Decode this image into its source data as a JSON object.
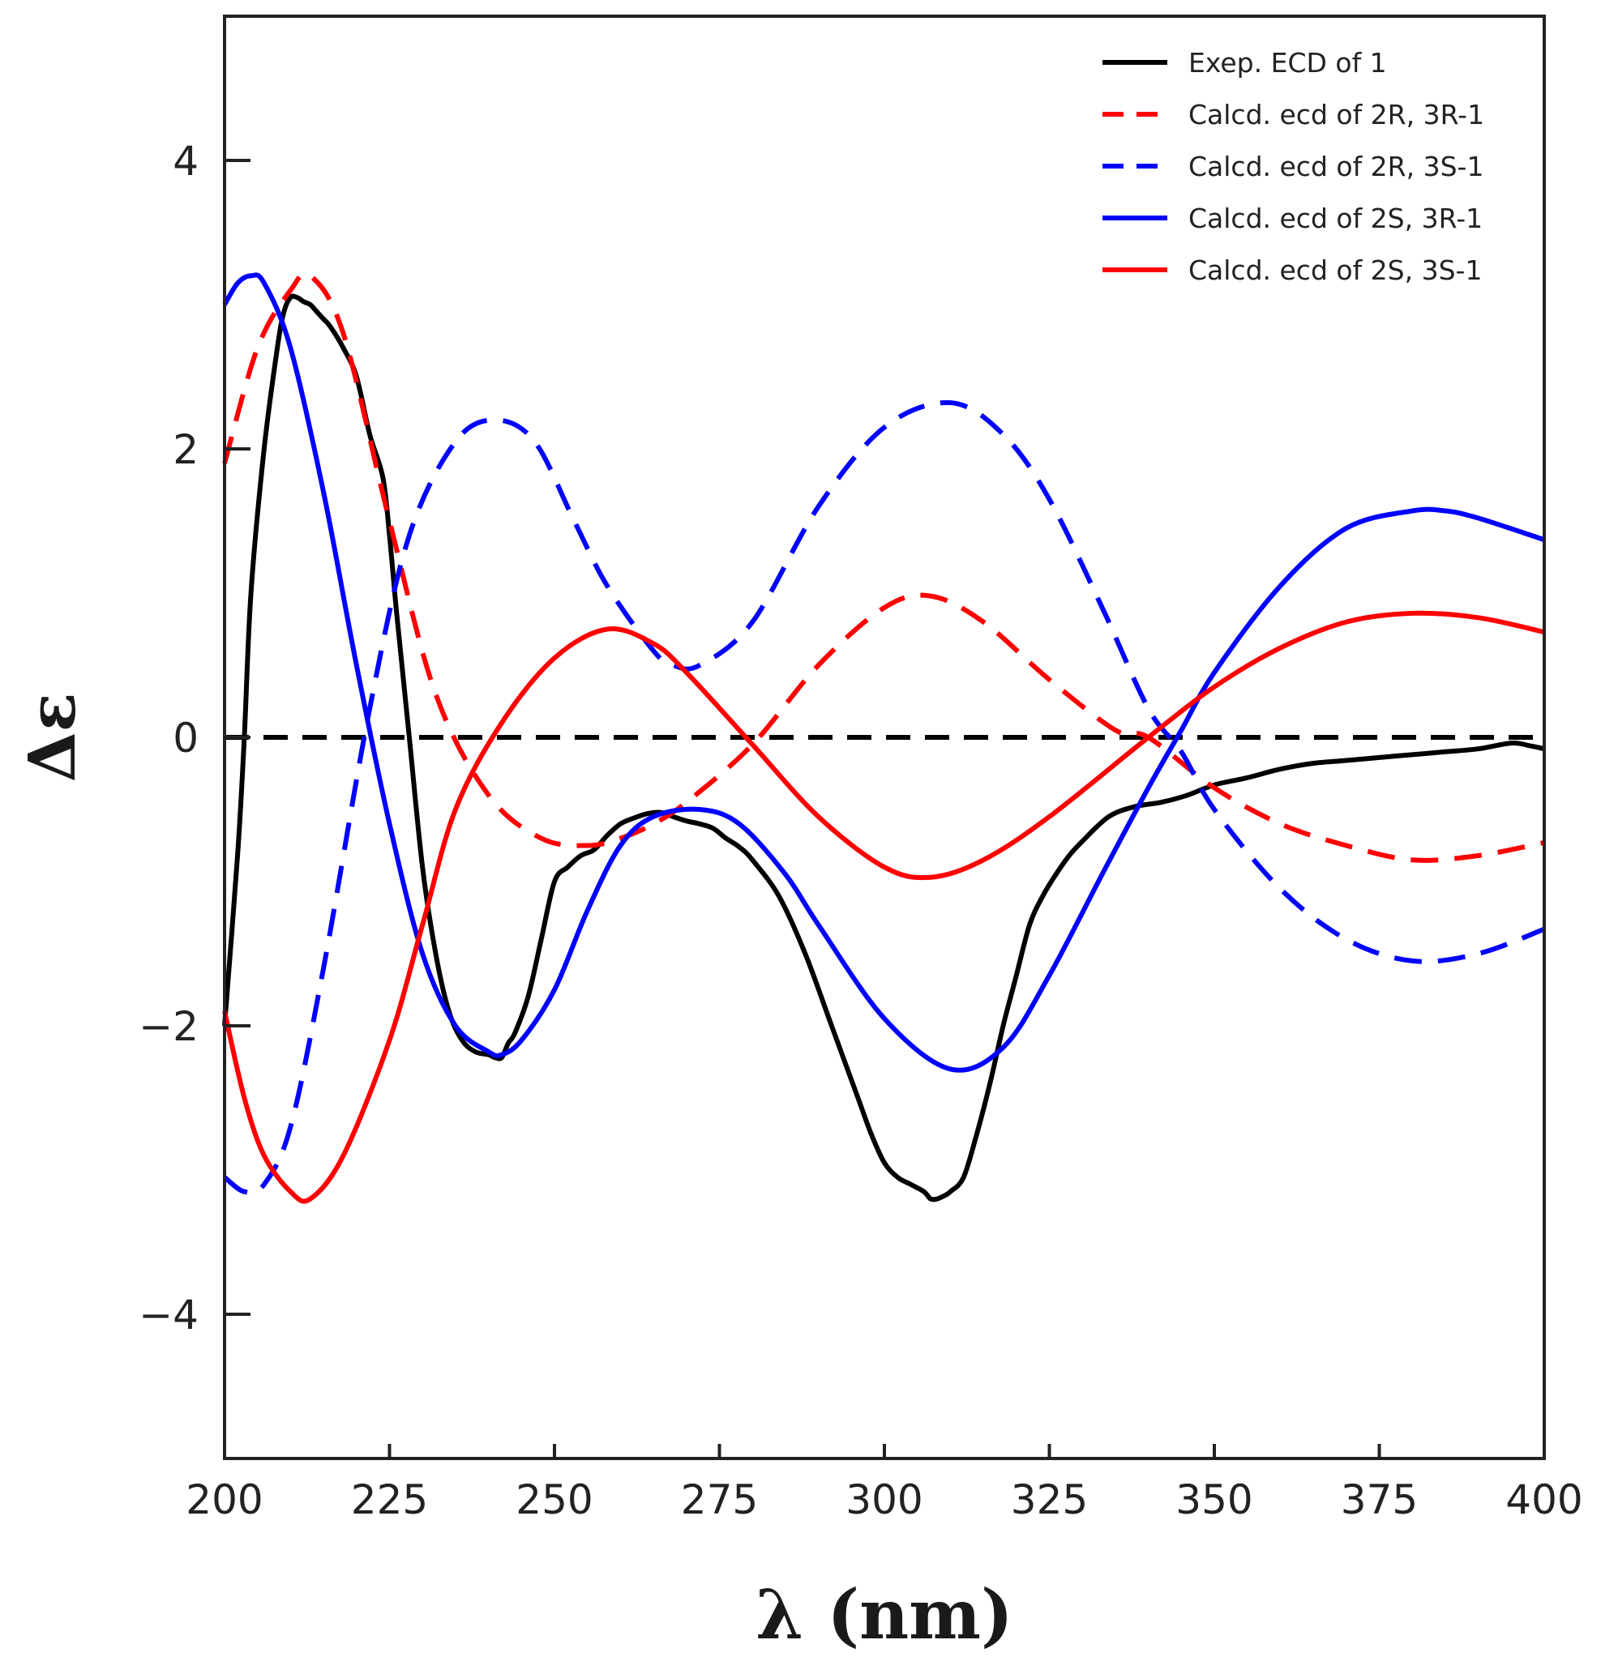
{
  "chart_data": {
    "type": "line",
    "title": "",
    "xlabel": "λ (nm)",
    "ylabel": "Δε",
    "xlim": [
      200,
      400
    ],
    "ylim": [
      -5,
      5
    ],
    "x_ticks": [
      200,
      225,
      250,
      275,
      300,
      325,
      350,
      375,
      400
    ],
    "x_tick_labels": [
      "200",
      "225",
      "250",
      "275",
      "300",
      "325",
      "350",
      "375",
      "400"
    ],
    "y_ticks": [
      -4,
      -2,
      0,
      2,
      4
    ],
    "y_tick_labels": [
      "−4",
      "−2",
      "0",
      "2",
      "4"
    ],
    "grid": false,
    "legend_position": "top-right",
    "zero_line": {
      "y": 0,
      "color": "#000000",
      "style": "dashed"
    },
    "series": [
      {
        "name": "Exep. ECD of 1",
        "color": "#000000",
        "style": "solid",
        "x": [
          200,
          202,
          203,
          204,
          206,
          208,
          209,
          210,
          211,
          212,
          213,
          214,
          215,
          216,
          218,
          220,
          222,
          224,
          225,
          226,
          228,
          230,
          232,
          234,
          236,
          238,
          240,
          241,
          242,
          243,
          244,
          246,
          248,
          250,
          252,
          254,
          256,
          258,
          260,
          262,
          264,
          266,
          268,
          270,
          272,
          274,
          276,
          278,
          280,
          284,
          288,
          292,
          296,
          298,
          300,
          302,
          304,
          306,
          307,
          308,
          309,
          310,
          312,
          314,
          316,
          318,
          320,
          322,
          324,
          326,
          328,
          330,
          334,
          338,
          342,
          346,
          350,
          355,
          360,
          365,
          370,
          375,
          380,
          385,
          390,
          395,
          398,
          400
        ],
        "y": [
          -2.0,
          -0.8,
          0.0,
          1.0,
          2.0,
          2.7,
          2.95,
          3.05,
          3.05,
          3.02,
          3.0,
          2.95,
          2.9,
          2.85,
          2.7,
          2.5,
          2.1,
          1.8,
          1.4,
          0.9,
          0.0,
          -0.9,
          -1.5,
          -1.9,
          -2.1,
          -2.18,
          -2.2,
          -2.22,
          -2.22,
          -2.12,
          -2.05,
          -1.8,
          -1.4,
          -1.0,
          -0.9,
          -0.82,
          -0.78,
          -0.68,
          -0.6,
          -0.56,
          -0.53,
          -0.52,
          -0.55,
          -0.58,
          -0.6,
          -0.63,
          -0.7,
          -0.76,
          -0.85,
          -1.1,
          -1.5,
          -2.0,
          -2.5,
          -2.75,
          -2.95,
          -3.05,
          -3.1,
          -3.15,
          -3.2,
          -3.2,
          -3.18,
          -3.15,
          -3.05,
          -2.75,
          -2.4,
          -2.0,
          -1.65,
          -1.3,
          -1.1,
          -0.95,
          -0.82,
          -0.72,
          -0.55,
          -0.48,
          -0.45,
          -0.4,
          -0.33,
          -0.28,
          -0.22,
          -0.18,
          -0.16,
          -0.14,
          -0.12,
          -0.1,
          -0.08,
          -0.04,
          -0.06,
          -0.08
        ]
      },
      {
        "name": "Calcd. ecd of 2R, 3R-1",
        "color": "#ff0000",
        "style": "dashed",
        "x": [
          200,
          205,
          210,
          213,
          218,
          225,
          232,
          240,
          248,
          255,
          260,
          265,
          270,
          280,
          290,
          300,
          307,
          315,
          325,
          335,
          340,
          350,
          360,
          370,
          380,
          390,
          400
        ],
        "y": [
          1.9,
          2.7,
          3.1,
          3.2,
          2.8,
          1.5,
          0.3,
          -0.4,
          -0.7,
          -0.75,
          -0.7,
          -0.6,
          -0.45,
          -0.05,
          0.5,
          0.9,
          0.98,
          0.8,
          0.4,
          0.05,
          0.0,
          -0.35,
          -0.6,
          -0.75,
          -0.85,
          -0.82,
          -0.73
        ]
      },
      {
        "name": "Calcd. ecd of 2R, 3S-1",
        "color": "#0000ff",
        "style": "dashed",
        "x": [
          200,
          203,
          206,
          210,
          215,
          222,
          228,
          235,
          241,
          247,
          253,
          258,
          265,
          268,
          272,
          280,
          290,
          300,
          310,
          318,
          325,
          333,
          340,
          345,
          350,
          360,
          370,
          380,
          390,
          400
        ],
        "y": [
          -3.05,
          -3.15,
          -3.1,
          -2.7,
          -1.6,
          0.2,
          1.4,
          2.05,
          2.2,
          2.05,
          1.5,
          1.05,
          0.6,
          0.5,
          0.5,
          0.8,
          1.6,
          2.15,
          2.32,
          2.1,
          1.65,
          0.9,
          0.2,
          -0.1,
          -0.5,
          -1.05,
          -1.4,
          -1.55,
          -1.5,
          -1.33
        ]
      },
      {
        "name": "Calcd. ecd of 2S, 3R-1",
        "color": "#0000ff",
        "style": "solid",
        "x": [
          200,
          202,
          204,
          206,
          210,
          215,
          220,
          225,
          230,
          235,
          240,
          242,
          245,
          250,
          255,
          260,
          265,
          272,
          278,
          285,
          290,
          300,
          310,
          318,
          325,
          333,
          340,
          345,
          350,
          360,
          370,
          380,
          385,
          390,
          400
        ],
        "y": [
          3.0,
          3.15,
          3.2,
          3.15,
          2.7,
          1.7,
          0.5,
          -0.6,
          -1.5,
          -2.0,
          -2.18,
          -2.2,
          -2.1,
          -1.75,
          -1.2,
          -0.75,
          -0.55,
          -0.5,
          -0.6,
          -0.95,
          -1.3,
          -1.95,
          -2.3,
          -2.15,
          -1.65,
          -0.95,
          -0.35,
          0.05,
          0.45,
          1.05,
          1.45,
          1.57,
          1.57,
          1.52,
          1.37
        ]
      },
      {
        "name": "Calcd. ecd of 2S, 3S-1",
        "color": "#ff0000",
        "style": "solid",
        "x": [
          200,
          203,
          206,
          210,
          213,
          218,
          225,
          230,
          235,
          242,
          250,
          258,
          265,
          270,
          280,
          290,
          300,
          307,
          315,
          325,
          340,
          350,
          360,
          370,
          380,
          390,
          400
        ],
        "y": [
          -1.9,
          -2.5,
          -2.9,
          -3.15,
          -3.2,
          -2.9,
          -2.1,
          -1.3,
          -0.5,
          0.1,
          0.55,
          0.75,
          0.65,
          0.45,
          -0.05,
          -0.55,
          -0.9,
          -0.97,
          -0.85,
          -0.55,
          0.0,
          0.35,
          0.62,
          0.8,
          0.86,
          0.83,
          0.73
        ]
      }
    ]
  }
}
